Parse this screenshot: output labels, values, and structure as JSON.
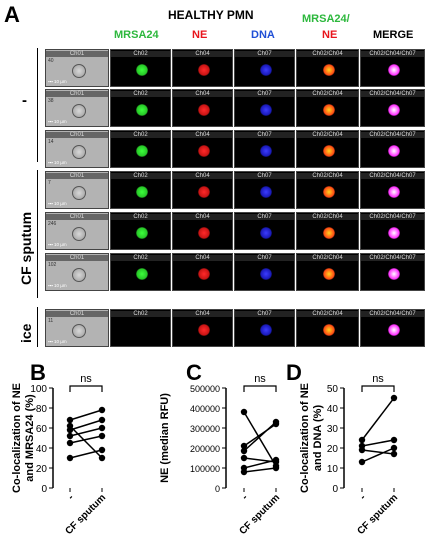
{
  "panelA": {
    "letter": "A",
    "title": "HEALTHY PMN",
    "columns": [
      {
        "label": "MRSA24",
        "color": "#2db83d"
      },
      {
        "label": "NE",
        "color": "#e8141c"
      },
      {
        "label": "DNA",
        "color": "#1f4fd6"
      },
      {
        "label_top": "MRSA24/",
        "label_bottom": "NE",
        "color_top": "#2db83d",
        "color_bottom": "#e8141c"
      },
      {
        "label": "MERGE",
        "color": "#000000"
      }
    ],
    "channel_labels": [
      "Ch01",
      "Ch02",
      "Ch04",
      "Ch07",
      "Ch02/Ch04",
      "Ch02/Ch04/Ch07"
    ],
    "scale_label": "10 µm",
    "groups": [
      {
        "label": "-",
        "rows": [
          "40",
          "38",
          "14"
        ]
      },
      {
        "label": "CF sputum",
        "rows": [
          "7",
          "246",
          "102"
        ]
      },
      {
        "label": "ice",
        "rows": [
          "11"
        ]
      }
    ]
  },
  "panelB": {
    "letter": "B",
    "chart_data": {
      "type": "line",
      "ylabel": "Co-localization of NE and MRSA24 (%)",
      "categories": [
        "-",
        "CF sputum"
      ],
      "ylim": [
        0,
        100
      ],
      "yticks": [
        "0",
        "20",
        "40",
        "60",
        "80",
        "100"
      ],
      "significance": "ns",
      "pairs": [
        [
          68,
          78
        ],
        [
          58,
          68
        ],
        [
          52,
          60
        ],
        [
          45,
          52
        ],
        [
          30,
          38
        ],
        [
          62,
          30
        ]
      ]
    }
  },
  "panelC": {
    "letter": "C",
    "chart_data": {
      "type": "line",
      "ylabel": "NE (median RFU)",
      "categories": [
        "-",
        "CF sputum"
      ],
      "ylim": [
        0,
        500000
      ],
      "yticks": [
        "0",
        "100000",
        "200000",
        "300000",
        "400000",
        "500000"
      ],
      "significance": "ns",
      "pairs": [
        [
          380000,
          110000
        ],
        [
          210000,
          320000
        ],
        [
          185000,
          330000
        ],
        [
          150000,
          130000
        ],
        [
          100000,
          140000
        ],
        [
          80000,
          100000
        ]
      ]
    }
  },
  "panelD": {
    "letter": "D",
    "chart_data": {
      "type": "line",
      "ylabel": "Co-localization of NE and DNA (%)",
      "categories": [
        "-",
        "CF sputum"
      ],
      "ylim": [
        0,
        50
      ],
      "yticks": [
        "0",
        "10",
        "20",
        "30",
        "40",
        "50"
      ],
      "significance": "ns",
      "pairs": [
        [
          24,
          45
        ],
        [
          21,
          24
        ],
        [
          19,
          17
        ],
        [
          13,
          20
        ]
      ]
    }
  }
}
